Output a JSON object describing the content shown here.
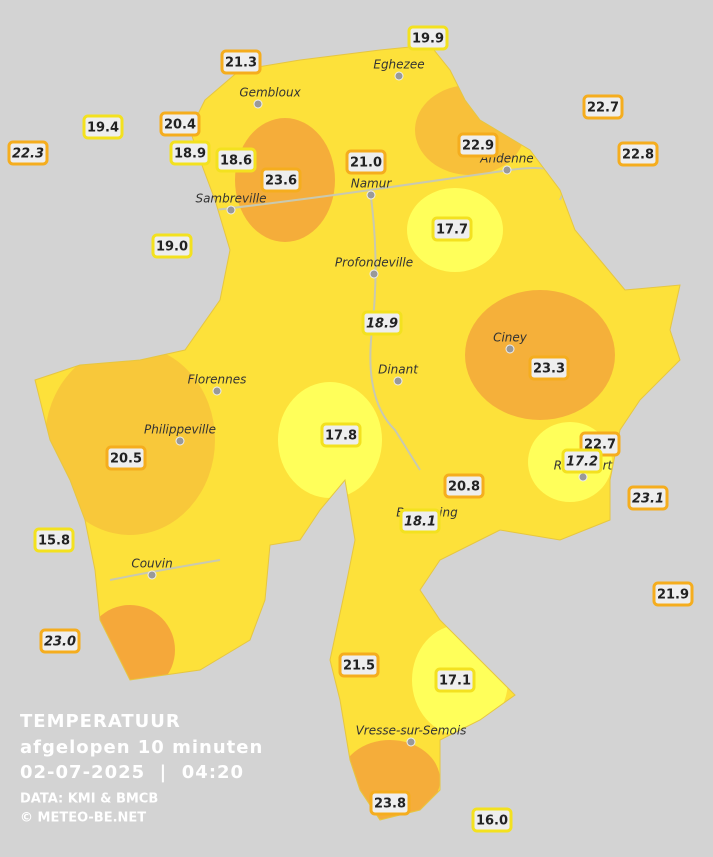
{
  "title": "TEMPERATUUR",
  "subtitle": "afgelopen 10 minuten",
  "datetime": "02-07-2025  |  04:20",
  "source": "DATA: KMI & BMCB",
  "copyright": "© METEO-BE.NET",
  "towns": [
    "Eghezee",
    "Gembloux",
    "Andenne",
    "Namur",
    "Sambreville",
    "Profondeville",
    "Ciney",
    "Dinant",
    "Florennes",
    "Philippeville",
    "Rochefort",
    "Beauraing",
    "Couvin",
    "Vresse-sur-Semois"
  ],
  "stations": [
    "19.9",
    "21.3",
    "22.7",
    "20.4",
    "19.4",
    "22.9",
    "22.3",
    "18.9",
    "18.6",
    "21.0",
    "22.8",
    "23.6",
    "19.0",
    "17.7",
    "18.9",
    "23.3",
    "17.8",
    "22.7",
    "17.2",
    "20.5",
    "23.1",
    "20.8",
    "18.1",
    "15.8",
    "21.9",
    "23.0",
    "21.5",
    "17.1",
    "23.8",
    "16.0"
  ]
}
